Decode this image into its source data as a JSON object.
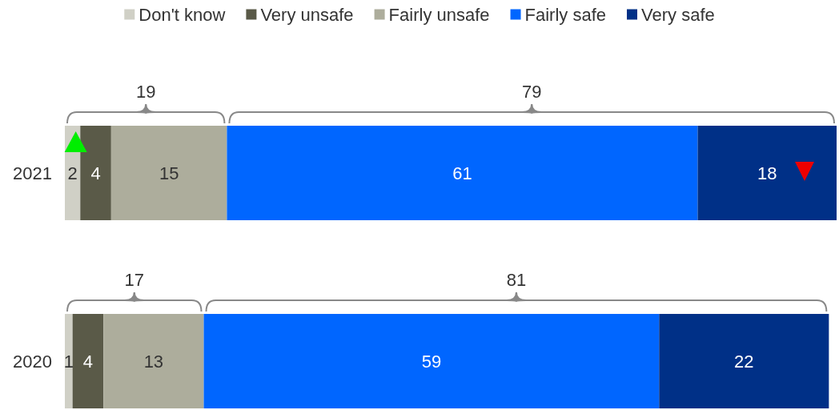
{
  "chart_data": {
    "type": "bar",
    "orientation": "horizontal",
    "stacked": true,
    "categories": [
      "2021",
      "2020"
    ],
    "series": [
      {
        "name": "Don't know",
        "color": "#d0d0c6",
        "values": [
          2,
          1
        ]
      },
      {
        "name": "Very unsafe",
        "color": "#5a5a48",
        "values": [
          4,
          4
        ]
      },
      {
        "name": "Fairly unsafe",
        "color": "#adad9c",
        "values": [
          15,
          13
        ]
      },
      {
        "name": "Fairly safe",
        "color": "#0066ff",
        "values": [
          61,
          59
        ]
      },
      {
        "name": "Very safe",
        "color": "#003087",
        "values": [
          18,
          22
        ]
      }
    ],
    "data_labels": true,
    "legend": "top",
    "marker": "square",
    "tick_labels": "y",
    "annotations": [
      "19",
      "79",
      "17",
      "81"
    ]
  }
}
